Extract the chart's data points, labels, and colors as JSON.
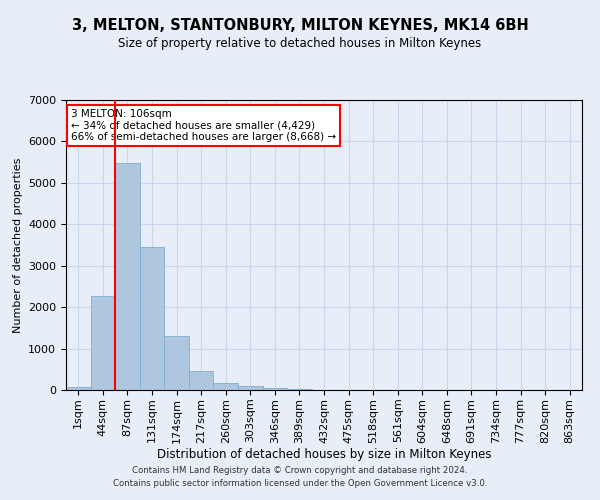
{
  "title": "3, MELTON, STANTONBURY, MILTON KEYNES, MK14 6BH",
  "subtitle": "Size of property relative to detached houses in Milton Keynes",
  "xlabel": "Distribution of detached houses by size in Milton Keynes",
  "ylabel": "Number of detached properties",
  "footer_line1": "Contains HM Land Registry data © Crown copyright and database right 2024.",
  "footer_line2": "Contains public sector information licensed under the Open Government Licence v3.0.",
  "categories": [
    "1sqm",
    "44sqm",
    "87sqm",
    "131sqm",
    "174sqm",
    "217sqm",
    "260sqm",
    "303sqm",
    "346sqm",
    "389sqm",
    "432sqm",
    "475sqm",
    "518sqm",
    "561sqm",
    "604sqm",
    "648sqm",
    "691sqm",
    "734sqm",
    "777sqm",
    "820sqm",
    "863sqm"
  ],
  "values": [
    80,
    2270,
    5470,
    3450,
    1310,
    470,
    160,
    90,
    55,
    25,
    0,
    0,
    0,
    0,
    0,
    0,
    0,
    0,
    0,
    0,
    0
  ],
  "bar_color": "#aec6de",
  "bar_edge_color": "#7aafd4",
  "grid_color": "#c8d8ec",
  "bg_color": "#e8eef8",
  "vline_x": 1.5,
  "vline_color": "red",
  "annotation_text": "3 MELTON: 106sqm\n← 34% of detached houses are smaller (4,429)\n66% of semi-detached houses are larger (8,668) →",
  "annotation_box_color": "white",
  "annotation_box_edge": "red",
  "ylim": [
    0,
    7000
  ],
  "yticks": [
    0,
    1000,
    2000,
    3000,
    4000,
    5000,
    6000,
    7000
  ]
}
